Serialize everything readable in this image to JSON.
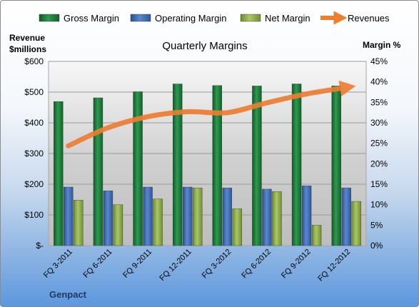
{
  "chart_data": {
    "type": "bar",
    "title": "Quarterly Margins",
    "ylabel_left": [
      "Revenue",
      "$millions"
    ],
    "ylabel_right": "Margin %",
    "footer": "Genpact",
    "categories": [
      "FQ 3-2011",
      "FQ 6-2011",
      "FQ 9-2011",
      "FQ 12-2011",
      "FQ 3-2012",
      "FQ 6-2012",
      "FQ 9-2012",
      "FQ 12-2012"
    ],
    "left_axis": {
      "ylim": [
        0,
        600
      ],
      "ticks": [
        0,
        100,
        200,
        300,
        400,
        500,
        600
      ],
      "tick_labels": [
        "$-",
        "$100",
        "$200",
        "$300",
        "$400",
        "$500",
        "$600"
      ]
    },
    "right_axis": {
      "ylim": [
        0,
        45
      ],
      "ticks": [
        0,
        5,
        10,
        15,
        20,
        25,
        30,
        35,
        40,
        45
      ],
      "tick_labels": [
        "0%",
        "5%",
        "10%",
        "15%",
        "20%",
        "25%",
        "30%",
        "35%",
        "40%",
        "45%"
      ]
    },
    "grid": true,
    "legend_position": "top",
    "series": [
      {
        "name": "Gross Margin",
        "kind": "bar",
        "axis": "right",
        "color": "#1f7a3a",
        "values": [
          35.2,
          36.1,
          37.6,
          39.5,
          39.1,
          39.0,
          39.5,
          39.0
        ]
      },
      {
        "name": "Operating Margin",
        "kind": "bar",
        "axis": "right",
        "color": "#3f6db5",
        "values": [
          14.3,
          13.4,
          14.3,
          14.3,
          14.1,
          13.8,
          14.6,
          14.1
        ]
      },
      {
        "name": "Net Margin",
        "kind": "bar",
        "axis": "right",
        "color": "#8fb04a",
        "values": [
          11.1,
          10.0,
          11.4,
          14.1,
          9.0,
          13.2,
          5.0,
          10.8
        ]
      },
      {
        "name": "Revenues",
        "kind": "line",
        "axis": "left",
        "color": "#ed7d31",
        "values": [
          325,
          384,
          420,
          436,
          433,
          465,
          494,
          515
        ]
      }
    ]
  }
}
